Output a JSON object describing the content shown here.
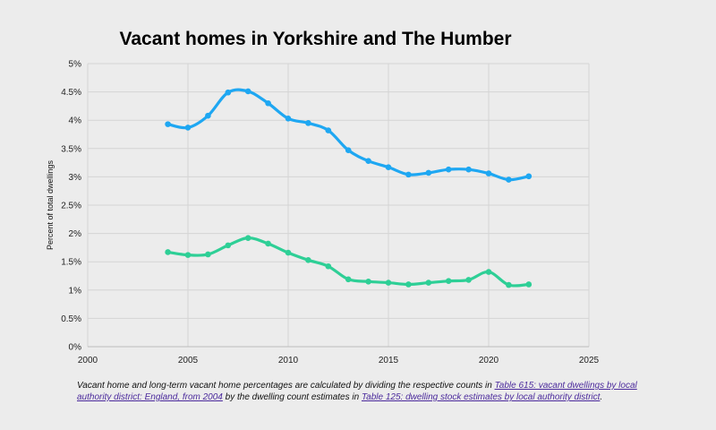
{
  "chart_data": {
    "type": "line",
    "title": "Vacant homes in Yorkshire and The Humber",
    "xlabel": "",
    "ylabel": "Percent of total dwellings",
    "xlim": [
      2000,
      2025
    ],
    "ylim": [
      0,
      5
    ],
    "x_ticks": [
      "2000",
      "2005",
      "2010",
      "2015",
      "2020",
      "2025"
    ],
    "y_ticks": [
      "0%",
      "0.5%",
      "1%",
      "1.5%",
      "2%",
      "2.5%",
      "3%",
      "3.5%",
      "4%",
      "4.5%",
      "5%"
    ],
    "grid": true,
    "legend": "none",
    "x": [
      2004,
      2005,
      2006,
      2007,
      2008,
      2009,
      2010,
      2011,
      2012,
      2013,
      2014,
      2015,
      2016,
      2017,
      2018,
      2019,
      2020,
      2021,
      2022
    ],
    "series": [
      {
        "color": "#1ea7f2",
        "values": [
          3.93,
          3.87,
          4.08,
          4.49,
          4.51,
          4.3,
          4.03,
          3.95,
          3.82,
          3.47,
          3.28,
          3.17,
          3.04,
          3.07,
          3.13,
          3.13,
          3.06,
          2.95,
          3.01
        ]
      },
      {
        "color": "#2ecf96",
        "values": [
          1.67,
          1.62,
          1.63,
          1.79,
          1.92,
          1.82,
          1.66,
          1.53,
          1.42,
          1.19,
          1.15,
          1.13,
          1.1,
          1.13,
          1.16,
          1.18,
          1.32,
          1.09,
          1.1
        ]
      }
    ]
  },
  "footnote": {
    "text1": "Vacant home and long-term vacant home percentages are calculated by dividing the respective counts in ",
    "link1": "Table 615: vacant dwellings by local authority district: England, from 2004",
    "text2": " by the dwelling count estimates in ",
    "link2": "Table 125: dwelling stock estimates by local authority district",
    "text3": "."
  }
}
